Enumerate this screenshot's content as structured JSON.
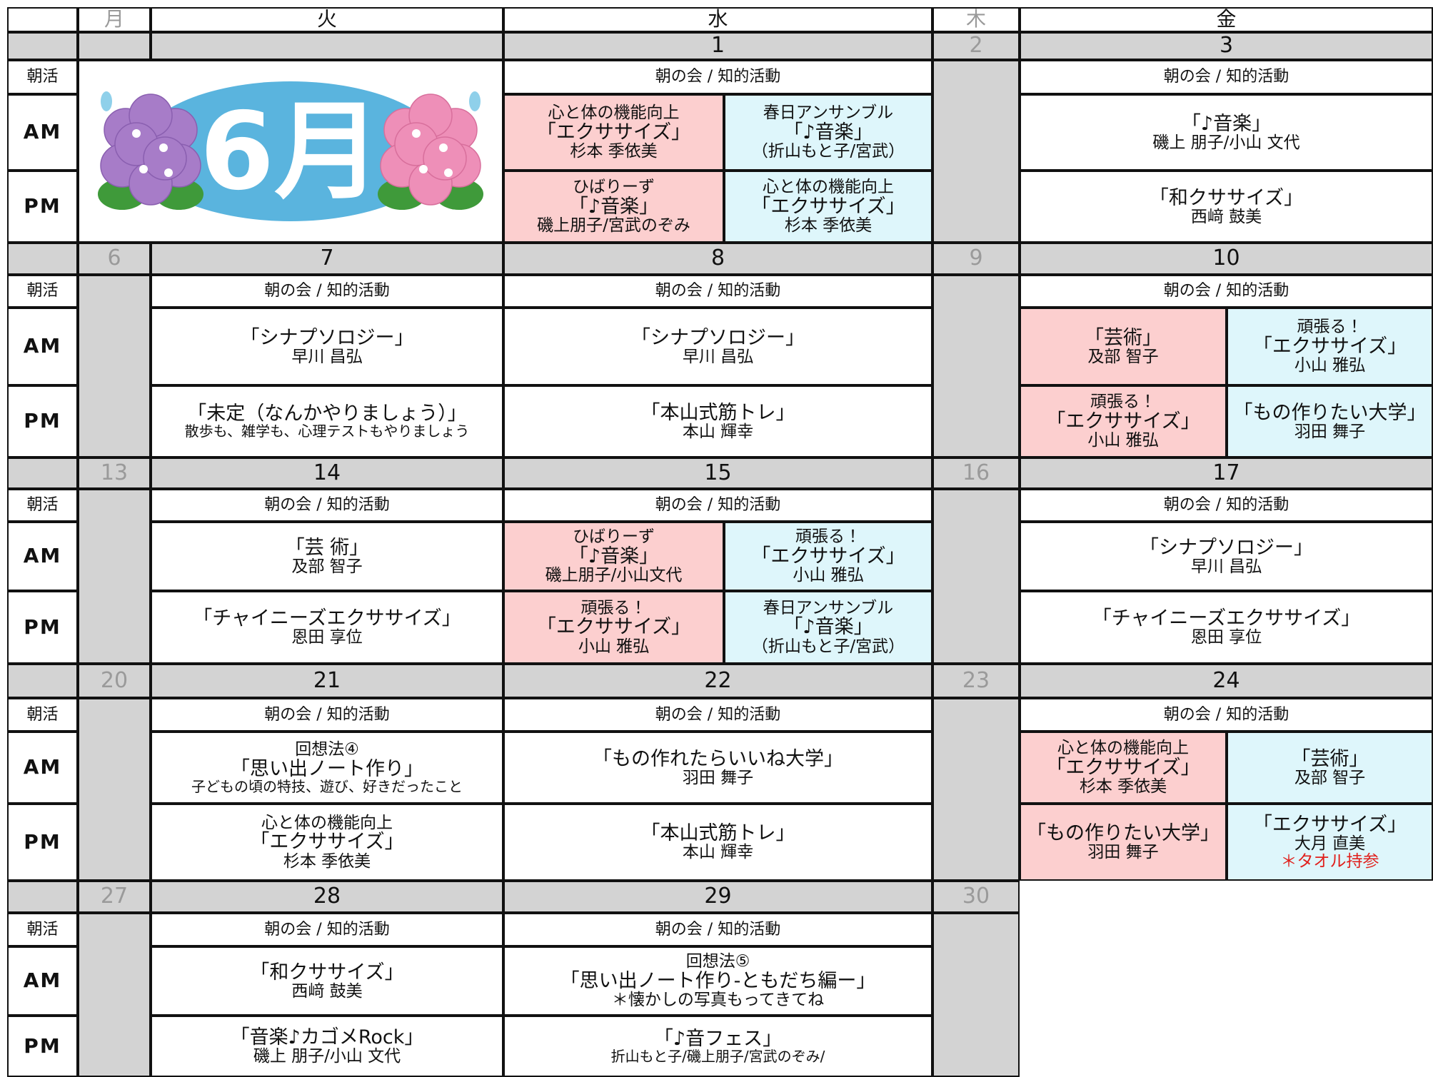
{
  "days": [
    "月",
    "火",
    "水",
    "木",
    "金"
  ],
  "row_labels": [
    "朝活",
    "AM",
    "PM"
  ],
  "weeks": [
    {
      "banner": "6月",
      "dates": [
        null,
        null,
        1,
        2,
        3
      ],
      "slots": [
        null,
        null,
        {
          "morning": "朝の会 / 知的活動",
          "am": {
            "left": [
              "心と体の機能向上",
              "「エクササイズ」",
              "杉本 季依美"
            ],
            "right": [
              "春日アンサンブル",
              "「♪音楽」",
              "（折山もと子/宮武）"
            ]
          },
          "pm": {
            "left": [
              "ひばりーず",
              "「♪音楽」",
              "磯上朋子/宮武のぞみ"
            ],
            "right": [
              "心と体の機能向上",
              "「エクササイズ」",
              "杉本 季依美"
            ]
          }
        },
        null,
        {
          "morning": "朝の会 / 知的活動",
          "am": [
            "「♪音楽」",
            "磯上 朋子/小山 文代"
          ],
          "pm": [
            "「和クササイズ」",
            "西﨑 鼓美"
          ]
        }
      ]
    },
    {
      "dates": [
        6,
        7,
        8,
        9,
        10
      ],
      "slots": [
        null,
        {
          "morning": "朝の会 / 知的活動",
          "am": [
            "「シナプソロジー」",
            "早川 昌弘"
          ],
          "pm": [
            "「未定（なんかやりましょう）」",
            "散歩も、雑学も、心理テストもやりましょう"
          ]
        },
        {
          "morning": "朝の会 / 知的活動",
          "am": [
            "「シナプソロジー」",
            "早川 昌弘"
          ],
          "pm": [
            "「本山式筋トレ」",
            "本山 輝幸"
          ]
        },
        null,
        {
          "morning": "朝の会 / 知的活動",
          "am": {
            "left": [
              "「芸術」",
              "及部 智子"
            ],
            "right": [
              "頑張る！",
              "「エクササイズ」",
              "小山 雅弘"
            ]
          },
          "pm": {
            "left": [
              "頑張る！",
              "「エクササイズ」",
              "小山 雅弘"
            ],
            "right": [
              "「もの作りたい大学」",
              "羽田 舞子"
            ]
          }
        }
      ]
    },
    {
      "dates": [
        13,
        14,
        15,
        16,
        17
      ],
      "slots": [
        null,
        {
          "morning": "朝の会 / 知的活動",
          "am": [
            "「芸 術」",
            "及部 智子"
          ],
          "pm": [
            "「チャイニーズエクササイズ」",
            "恩田 享位"
          ]
        },
        {
          "morning": "朝の会 / 知的活動",
          "am": {
            "left": [
              "ひばりーず",
              "「♪音楽」",
              "磯上朋子/小山文代"
            ],
            "right": [
              "頑張る！",
              "「エクササイズ」",
              "小山 雅弘"
            ]
          },
          "pm": {
            "left": [
              "頑張る！",
              "「エクササイズ」",
              "小山 雅弘"
            ],
            "right": [
              "春日アンサンブル",
              "「♪音楽」",
              "（折山もと子/宮武）"
            ]
          }
        },
        null,
        {
          "morning": "朝の会 / 知的活動",
          "am": [
            "「シナプソロジー」",
            "早川 昌弘"
          ],
          "pm": [
            "「チャイニーズエクササイズ」",
            "恩田 享位"
          ]
        }
      ]
    },
    {
      "dates": [
        20,
        21,
        22,
        23,
        24
      ],
      "slots": [
        null,
        {
          "morning": "朝の会 / 知的活動",
          "am": [
            "回想法④",
            "「思い出ノート作り」",
            "子どもの頃の特技、遊び、好きだったこと"
          ],
          "pm": [
            "心と体の機能向上",
            "「エクササイズ」",
            "杉本 季依美"
          ]
        },
        {
          "morning": "朝の会 / 知的活動",
          "am": [
            "「もの作れたらいいね大学」",
            "羽田 舞子"
          ],
          "pm": [
            "「本山式筋トレ」",
            "本山 輝幸"
          ]
        },
        null,
        {
          "morning": "朝の会 / 知的活動",
          "am": {
            "left": [
              "心と体の機能向上",
              "「エクササイズ」",
              "杉本 季依美"
            ],
            "right": [
              "「芸術」",
              "及部 智子"
            ]
          },
          "pm": {
            "left": [
              "「もの作りたい大学」",
              "羽田 舞子"
            ],
            "right": [
              "「エクササイズ」",
              "大月 直美",
              {
                "text": "＊タオル持参",
                "color": "#e0201c"
              }
            ]
          }
        }
      ]
    },
    {
      "dates": [
        27,
        28,
        29,
        30,
        null
      ],
      "slots": [
        null,
        {
          "morning": "朝の会 / 知的活動",
          "am": [
            "「和クササイズ」",
            "西﨑 鼓美"
          ],
          "pm": [
            "「音楽♪カゴメRock」",
            "磯上 朋子/小山 文代"
          ]
        },
        {
          "morning": "朝の会 / 知的活動",
          "am": [
            "回想法⑤",
            "「思い出ノート作り-ともだち編ー」",
            "＊懐かしの写真もってきてね"
          ],
          "pm": [
            "「♪音フェス」",
            "折山もと子/磯上朋子/宮武のぞみ/"
          ]
        },
        null,
        null
      ]
    }
  ]
}
